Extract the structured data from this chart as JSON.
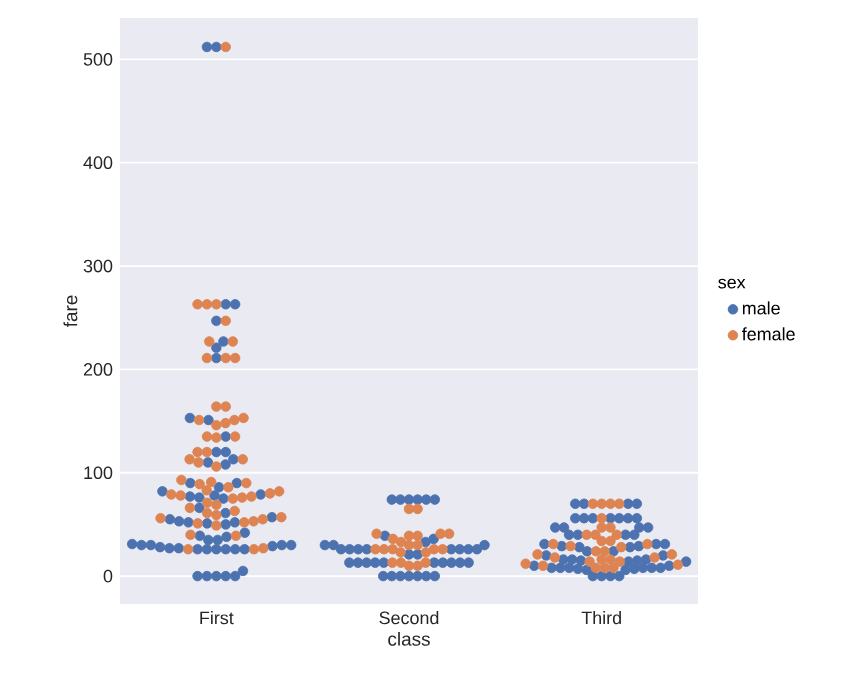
{
  "chart_data": {
    "type": "scatter",
    "xlabel": "class",
    "ylabel": "fare",
    "legend_title": "sex",
    "legend": "right",
    "grid": "y",
    "marker": "circle",
    "categories": [
      "First",
      "Second",
      "Third"
    ],
    "ylim": [
      -27,
      540
    ],
    "yticks": [
      0,
      100,
      200,
      300,
      400,
      500
    ],
    "series": [
      {
        "name": "male",
        "color": "#4c72b0",
        "values": [
          512,
          512,
          263,
          263,
          247,
          227,
          221,
          211,
          151,
          153,
          135,
          120,
          120,
          110,
          108,
          113,
          90,
          90,
          86,
          82,
          78,
          79,
          77,
          76,
          75,
          66,
          61,
          57,
          55,
          53,
          52,
          52,
          51,
          50,
          42,
          39,
          38,
          35,
          31,
          30,
          30,
          30,
          29,
          28,
          27,
          26,
          26,
          26,
          26,
          26,
          26,
          27,
          30,
          35,
          0,
          0,
          0,
          0,
          0,
          5,
          74,
          74,
          74,
          74,
          74,
          74,
          0,
          0,
          0,
          0,
          0,
          0,
          0,
          13,
          13,
          13,
          13,
          13,
          13,
          13,
          13,
          13,
          13,
          26,
          26,
          26,
          26,
          26,
          26,
          26,
          26,
          21,
          21,
          30,
          30,
          30,
          39,
          36,
          33,
          70,
          70,
          70,
          70,
          56,
          56,
          56,
          56,
          56,
          56,
          56,
          47,
          47,
          47,
          47,
          40,
          40,
          40,
          40,
          31,
          31,
          31,
          29,
          29,
          28,
          28,
          24,
          24,
          20,
          20,
          16,
          16,
          16,
          15,
          15,
          14,
          14,
          10,
          10,
          8,
          8,
          8,
          8,
          8,
          8,
          7,
          7,
          0,
          0,
          0,
          0,
          6,
          6
        ],
        "x": [
          "First",
          "First",
          "First",
          "First",
          "First",
          "First",
          "First",
          "First",
          "First",
          "First",
          "First",
          "First",
          "First",
          "First",
          "First",
          "First",
          "First",
          "First",
          "First",
          "First",
          "First",
          "First",
          "First",
          "First",
          "First",
          "First",
          "First",
          "First",
          "First",
          "First",
          "First",
          "First",
          "First",
          "First",
          "First",
          "First",
          "First",
          "First",
          "First",
          "First",
          "First",
          "First",
          "First",
          "First",
          "First",
          "First",
          "First",
          "First",
          "First",
          "First",
          "First",
          "First",
          "First",
          "First",
          "First",
          "First",
          "First",
          "First",
          "First",
          "First",
          "Second",
          "Second",
          "Second",
          "Second",
          "Second",
          "Second",
          "Second",
          "Second",
          "Second",
          "Second",
          "Second",
          "Second",
          "Second",
          "Second",
          "Second",
          "Second",
          "Second",
          "Second",
          "Second",
          "Second",
          "Second",
          "Second",
          "Second",
          "Second",
          "Second",
          "Second",
          "Second",
          "Second",
          "Second",
          "Second",
          "Second",
          "Second",
          "Second",
          "Second",
          "Second",
          "Second",
          "Second",
          "Second",
          "Second",
          "Third",
          "Third",
          "Third",
          "Third",
          "Third",
          "Third",
          "Third",
          "Third",
          "Third",
          "Third",
          "Third",
          "Third",
          "Third",
          "Third",
          "Third",
          "Third",
          "Third",
          "Third",
          "Third",
          "Third",
          "Third",
          "Third",
          "Third",
          "Third",
          "Third",
          "Third",
          "Third",
          "Third",
          "Third",
          "Third",
          "Third",
          "Third",
          "Third",
          "Third",
          "Third",
          "Third",
          "Third",
          "Third",
          "Third",
          "Third",
          "Third",
          "Third",
          "Third",
          "Third",
          "Third",
          "Third",
          "Third",
          "Third",
          "Third",
          "Third",
          "Third",
          "Third",
          "Third"
        ]
      },
      {
        "name": "female",
        "color": "#dd8452",
        "values": [
          512,
          263,
          263,
          263,
          247,
          227,
          227,
          211,
          211,
          211,
          164,
          164,
          153,
          151,
          151,
          146,
          148,
          135,
          135,
          134,
          120,
          120,
          110,
          113,
          113,
          106,
          93,
          91,
          90,
          89,
          86,
          83,
          82,
          80,
          79,
          78,
          77,
          76,
          75,
          71,
          69,
          66,
          63,
          61,
          59,
          57,
          56,
          55,
          53,
          52,
          51,
          49,
          40,
          39,
          27,
          26,
          26,
          65,
          65,
          26,
          26,
          26,
          26,
          26,
          23,
          23,
          13,
          13,
          13,
          10,
          10,
          41,
          41,
          41,
          39,
          39,
          36,
          33,
          30,
          30,
          70,
          70,
          70,
          70,
          56,
          47,
          47,
          40,
          40,
          40,
          34,
          34,
          31,
          31,
          29,
          28,
          24,
          24,
          21,
          21,
          18,
          18,
          16,
          16,
          14,
          14,
          12,
          11,
          8,
          8,
          8,
          10
        ],
        "x": [
          "First",
          "First",
          "First",
          "First",
          "First",
          "First",
          "First",
          "First",
          "First",
          "First",
          "First",
          "First",
          "First",
          "First",
          "First",
          "First",
          "First",
          "First",
          "First",
          "First",
          "First",
          "First",
          "First",
          "First",
          "First",
          "First",
          "First",
          "First",
          "First",
          "First",
          "First",
          "First",
          "First",
          "First",
          "First",
          "First",
          "First",
          "First",
          "First",
          "First",
          "First",
          "First",
          "First",
          "First",
          "First",
          "First",
          "First",
          "First",
          "First",
          "First",
          "First",
          "First",
          "First",
          "First",
          "First",
          "First",
          "First",
          "Second",
          "Second",
          "Second",
          "Second",
          "Second",
          "Second",
          "Second",
          "Second",
          "Second",
          "Second",
          "Second",
          "Second",
          "Second",
          "Second",
          "Second",
          "Second",
          "Second",
          "Second",
          "Second",
          "Second",
          "Second",
          "Second",
          "Second",
          "Third",
          "Third",
          "Third",
          "Third",
          "Third",
          "Third",
          "Third",
          "Third",
          "Third",
          "Third",
          "Third",
          "Third",
          "Third",
          "Third",
          "Third",
          "Third",
          "Third",
          "Third",
          "Third",
          "Third",
          "Third",
          "Third",
          "Third",
          "Third",
          "Third",
          "Third",
          "Third",
          "Third",
          "Third",
          "Third",
          "Third",
          "Third"
        ]
      }
    ]
  }
}
